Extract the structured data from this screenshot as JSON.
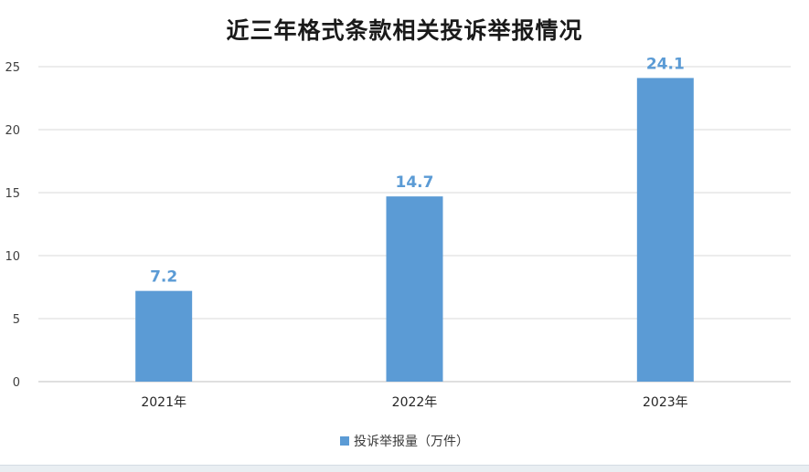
{
  "chart_data": {
    "type": "bar",
    "title": "近三年格式条款相关投诉举报情况",
    "categories": [
      "2021年",
      "2022年",
      "2023年"
    ],
    "series": [
      {
        "name": "投诉举报量（万件）",
        "values": [
          7.2,
          14.7,
          24.1
        ],
        "color": "#5b9bd5"
      }
    ],
    "data_labels": [
      "7.2",
      "14.7",
      "24.1"
    ],
    "ylim": [
      0,
      25
    ],
    "yticks": [
      0,
      5,
      10,
      15,
      20,
      25
    ],
    "ytick_labels": [
      "0",
      "5",
      "10",
      "15",
      "20",
      "25"
    ],
    "grid": true,
    "legend": "bottom"
  }
}
